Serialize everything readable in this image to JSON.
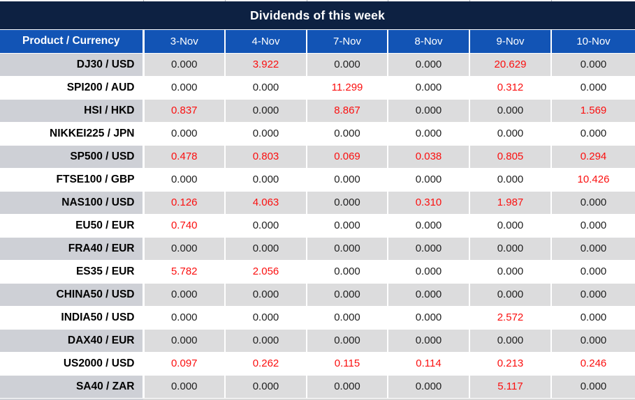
{
  "title": "Dividends of this week",
  "table": {
    "label_header": "Product / Currency",
    "date_headers": [
      "3-Nov",
      "4-Nov",
      "7-Nov",
      "8-Nov",
      "9-Nov",
      "10-Nov"
    ],
    "rows": [
      {
        "product": "DJ30 / USD",
        "values": [
          "0.000",
          "3.922",
          "0.000",
          "0.000",
          "20.629",
          "0.000"
        ]
      },
      {
        "product": "SPI200 / AUD",
        "values": [
          "0.000",
          "0.000",
          "11.299",
          "0.000",
          "0.312",
          "0.000"
        ]
      },
      {
        "product": "HSI / HKD",
        "values": [
          "0.837",
          "0.000",
          "8.867",
          "0.000",
          "0.000",
          "1.569"
        ]
      },
      {
        "product": "NIKKEI225 / JPN",
        "values": [
          "0.000",
          "0.000",
          "0.000",
          "0.000",
          "0.000",
          "0.000"
        ]
      },
      {
        "product": "SP500 / USD",
        "values": [
          "0.478",
          "0.803",
          "0.069",
          "0.038",
          "0.805",
          "0.294"
        ]
      },
      {
        "product": "FTSE100 / GBP",
        "values": [
          "0.000",
          "0.000",
          "0.000",
          "0.000",
          "0.000",
          "10.426"
        ]
      },
      {
        "product": "NAS100 / USD",
        "values": [
          "0.126",
          "4.063",
          "0.000",
          "0.310",
          "1.987",
          "0.000"
        ]
      },
      {
        "product": "EU50 / EUR",
        "values": [
          "0.740",
          "0.000",
          "0.000",
          "0.000",
          "0.000",
          "0.000"
        ]
      },
      {
        "product": "FRA40 / EUR",
        "values": [
          "0.000",
          "0.000",
          "0.000",
          "0.000",
          "0.000",
          "0.000"
        ]
      },
      {
        "product": "ES35 / EUR",
        "values": [
          "5.782",
          "2.056",
          "0.000",
          "0.000",
          "0.000",
          "0.000"
        ]
      },
      {
        "product": "CHINA50 / USD",
        "values": [
          "0.000",
          "0.000",
          "0.000",
          "0.000",
          "0.000",
          "0.000"
        ]
      },
      {
        "product": "INDIA50 / USD",
        "values": [
          "0.000",
          "0.000",
          "0.000",
          "0.000",
          "2.572",
          "0.000"
        ]
      },
      {
        "product": "DAX40 / EUR",
        "values": [
          "0.000",
          "0.000",
          "0.000",
          "0.000",
          "0.000",
          "0.000"
        ]
      },
      {
        "product": "US2000 / USD",
        "values": [
          "0.097",
          "0.262",
          "0.115",
          "0.114",
          "0.213",
          "0.246"
        ]
      },
      {
        "product": "SA40 / ZAR",
        "values": [
          "0.000",
          "0.000",
          "0.000",
          "0.000",
          "5.117",
          "0.000"
        ]
      }
    ]
  },
  "colors": {
    "title_bg": "#0d2142",
    "header_bg": "#1254b5",
    "alt_row_label_bg": "#ced0d6",
    "alt_row_value_bg": "#dcdcdd",
    "value_text": "#1f1f1f",
    "nonzero_value_text": "#fb0f0f",
    "grid_line": "#ffffff"
  }
}
